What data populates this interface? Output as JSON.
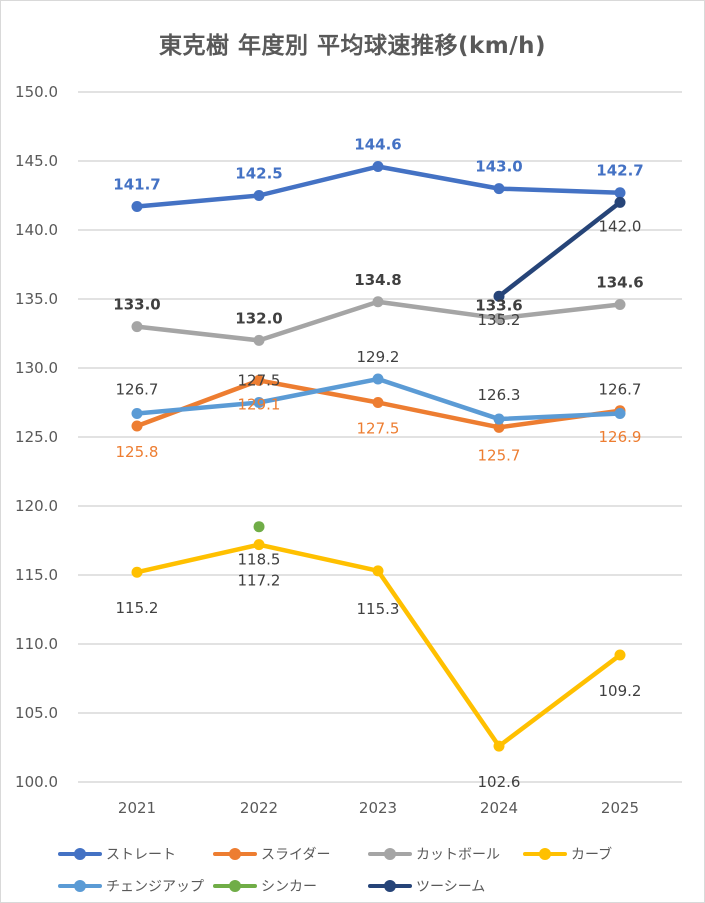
{
  "chart_data": {
    "type": "line",
    "title": "東克樹 年度別 平均球速推移(km/h)",
    "xlabel": "",
    "ylabel": "",
    "ylim": [
      100,
      150
    ],
    "y_ticks": [
      "100.0",
      "105.0",
      "110.0",
      "115.0",
      "120.0",
      "125.0",
      "130.0",
      "135.0",
      "140.0",
      "145.0",
      "150.0"
    ],
    "y_tick_values": [
      100,
      105,
      110,
      115,
      120,
      125,
      130,
      135,
      140,
      145,
      150
    ],
    "categories": [
      "2021",
      "2022",
      "2023",
      "2024",
      "2025"
    ],
    "grid": true,
    "legend_position": "bottom",
    "series": [
      {
        "name": "ストレート",
        "color": "#4472C4",
        "label_color": "#4472C4",
        "label_bold": true,
        "label_pos": "above",
        "values": [
          141.7,
          142.5,
          144.6,
          143.0,
          142.7
        ]
      },
      {
        "name": "スライダー",
        "color": "#ED7D31",
        "label_color": "#ED7D31",
        "label_bold": false,
        "label_pos": "below",
        "values": [
          125.8,
          129.1,
          127.5,
          125.7,
          126.9
        ]
      },
      {
        "name": "カットボール",
        "color": "#A5A5A5",
        "label_color": "#404040",
        "label_bold": true,
        "label_pos": "above",
        "values": [
          133.0,
          132.0,
          134.8,
          133.6,
          134.6
        ]
      },
      {
        "name": "カーブ",
        "color": "#FFC000",
        "label_color": "#404040",
        "label_bold": false,
        "label_pos": "below",
        "values": [
          115.2,
          117.2,
          115.3,
          102.6,
          109.2
        ]
      },
      {
        "name": "チェンジアップ",
        "color": "#5B9BD5",
        "label_color": "#404040",
        "label_bold": false,
        "label_pos": "above",
        "values": [
          126.7,
          127.5,
          129.2,
          126.3,
          126.7
        ]
      },
      {
        "name": "シンカー",
        "color": "#70AD47",
        "label_color": "#404040",
        "label_bold": false,
        "label_pos": "below",
        "values": [
          null,
          118.5,
          null,
          null,
          null
        ]
      },
      {
        "name": "ツーシーム",
        "color": "#264478",
        "label_color": "#404040",
        "label_bold": false,
        "label_pos": "below",
        "values": [
          null,
          null,
          null,
          135.2,
          142.0
        ]
      }
    ]
  }
}
